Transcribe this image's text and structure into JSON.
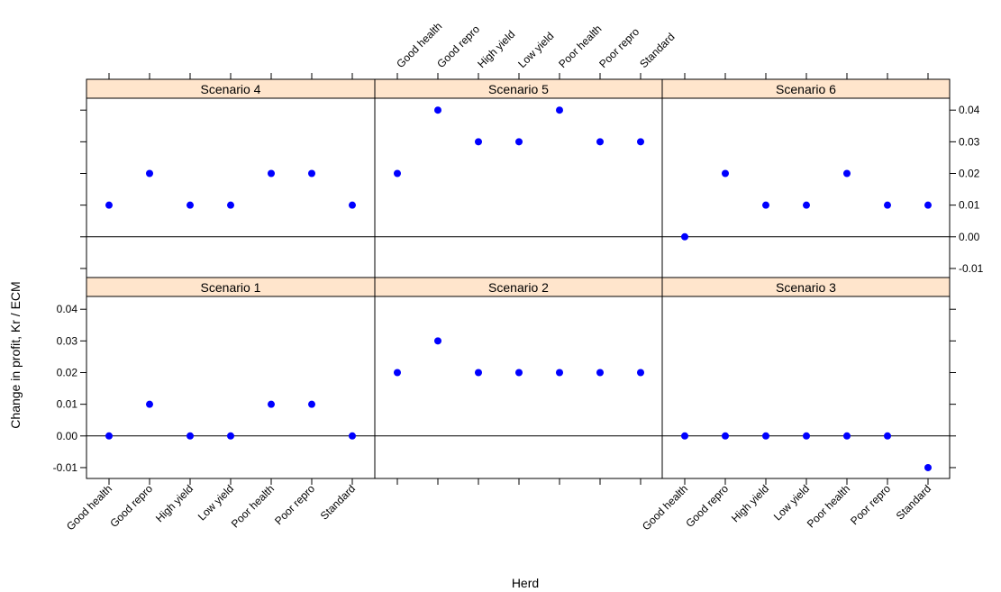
{
  "chart_data": {
    "type": "scatter",
    "xlabel": "Herd",
    "ylabel": "Change in profit, Kr / ECM",
    "categories": [
      "Good health",
      "Good repro",
      "High yield",
      "Low yield",
      "Poor health",
      "Poor repro",
      "Standard"
    ],
    "yticks": [
      "-0.01",
      "0.00",
      "0.01",
      "0.02",
      "0.03",
      "0.04"
    ],
    "ylim": [
      -0.013,
      0.045
    ],
    "reference_line": 0,
    "grid": false,
    "layout": "3 columns x 2 rows (trellis)",
    "strip_color": "#ffe5cc",
    "point_color": "#0000ff",
    "panels": [
      {
        "title": "Scenario 4",
        "row": 0,
        "col": 0,
        "values": [
          0.01,
          0.02,
          0.01,
          0.01,
          0.02,
          0.02,
          0.01
        ]
      },
      {
        "title": "Scenario 5",
        "row": 0,
        "col": 1,
        "values": [
          0.02,
          0.04,
          0.03,
          0.03,
          0.04,
          0.03,
          0.03
        ]
      },
      {
        "title": "Scenario 6",
        "row": 0,
        "col": 2,
        "values": [
          0.0,
          0.02,
          0.01,
          0.01,
          0.02,
          0.01,
          0.01
        ]
      },
      {
        "title": "Scenario 1",
        "row": 1,
        "col": 0,
        "values": [
          0.0,
          0.01,
          0.0,
          0.0,
          0.01,
          0.01,
          0.0
        ]
      },
      {
        "title": "Scenario 2",
        "row": 1,
        "col": 1,
        "values": [
          0.02,
          0.03,
          0.02,
          0.02,
          0.02,
          0.02,
          0.02
        ]
      },
      {
        "title": "Scenario 3",
        "row": 1,
        "col": 2,
        "values": [
          0.0,
          0.0,
          0.0,
          0.0,
          0.0,
          0.0,
          -0.01
        ]
      }
    ]
  }
}
